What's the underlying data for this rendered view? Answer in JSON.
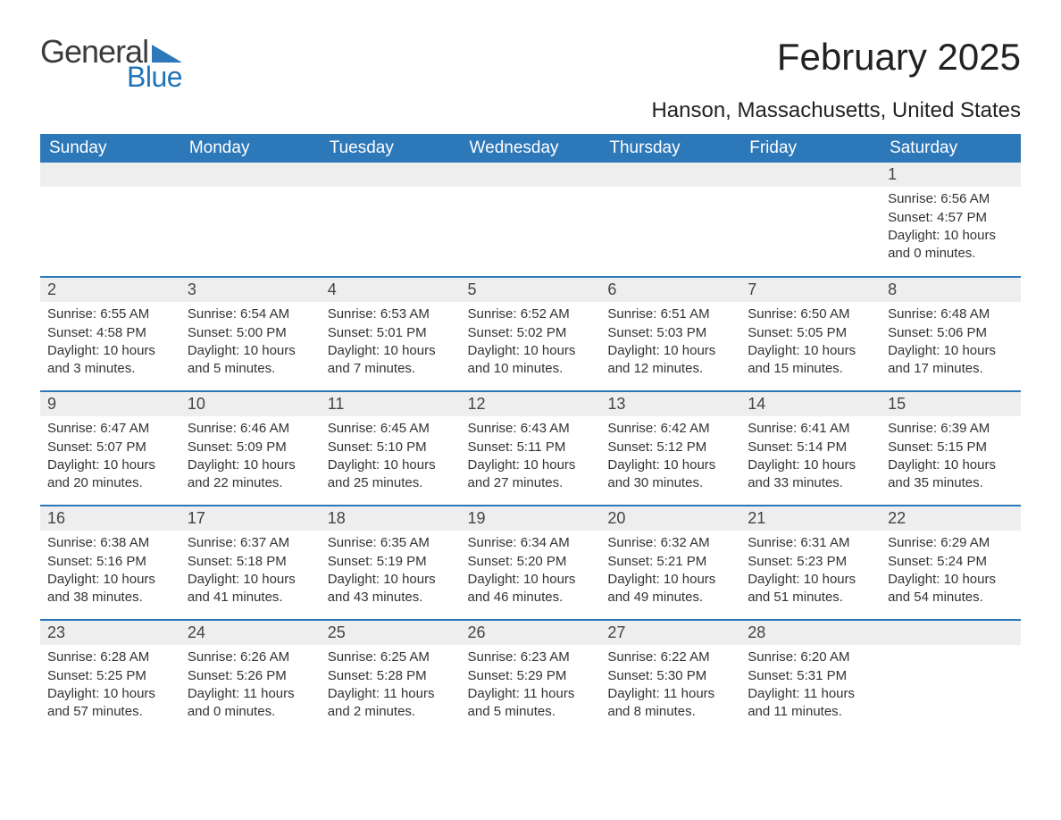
{
  "logo": {
    "text1": "General",
    "text2": "Blue",
    "triangle_color": "#2d78b9"
  },
  "title": "February 2025",
  "location": "Hanson, Massachusetts, United States",
  "colors": {
    "header_bg": "#2d78b9",
    "header_text": "#ffffff",
    "row_divider": "#2d78b9",
    "daynum_bg": "#eeeeee",
    "text": "#333333",
    "background": "#ffffff"
  },
  "weekdays": [
    "Sunday",
    "Monday",
    "Tuesday",
    "Wednesday",
    "Thursday",
    "Friday",
    "Saturday"
  ],
  "weeks": [
    [
      null,
      null,
      null,
      null,
      null,
      null,
      {
        "n": "1",
        "sunrise": "Sunrise: 6:56 AM",
        "sunset": "Sunset: 4:57 PM",
        "daylight": "Daylight: 10 hours and 0 minutes."
      }
    ],
    [
      {
        "n": "2",
        "sunrise": "Sunrise: 6:55 AM",
        "sunset": "Sunset: 4:58 PM",
        "daylight": "Daylight: 10 hours and 3 minutes."
      },
      {
        "n": "3",
        "sunrise": "Sunrise: 6:54 AM",
        "sunset": "Sunset: 5:00 PM",
        "daylight": "Daylight: 10 hours and 5 minutes."
      },
      {
        "n": "4",
        "sunrise": "Sunrise: 6:53 AM",
        "sunset": "Sunset: 5:01 PM",
        "daylight": "Daylight: 10 hours and 7 minutes."
      },
      {
        "n": "5",
        "sunrise": "Sunrise: 6:52 AM",
        "sunset": "Sunset: 5:02 PM",
        "daylight": "Daylight: 10 hours and 10 minutes."
      },
      {
        "n": "6",
        "sunrise": "Sunrise: 6:51 AM",
        "sunset": "Sunset: 5:03 PM",
        "daylight": "Daylight: 10 hours and 12 minutes."
      },
      {
        "n": "7",
        "sunrise": "Sunrise: 6:50 AM",
        "sunset": "Sunset: 5:05 PM",
        "daylight": "Daylight: 10 hours and 15 minutes."
      },
      {
        "n": "8",
        "sunrise": "Sunrise: 6:48 AM",
        "sunset": "Sunset: 5:06 PM",
        "daylight": "Daylight: 10 hours and 17 minutes."
      }
    ],
    [
      {
        "n": "9",
        "sunrise": "Sunrise: 6:47 AM",
        "sunset": "Sunset: 5:07 PM",
        "daylight": "Daylight: 10 hours and 20 minutes."
      },
      {
        "n": "10",
        "sunrise": "Sunrise: 6:46 AM",
        "sunset": "Sunset: 5:09 PM",
        "daylight": "Daylight: 10 hours and 22 minutes."
      },
      {
        "n": "11",
        "sunrise": "Sunrise: 6:45 AM",
        "sunset": "Sunset: 5:10 PM",
        "daylight": "Daylight: 10 hours and 25 minutes."
      },
      {
        "n": "12",
        "sunrise": "Sunrise: 6:43 AM",
        "sunset": "Sunset: 5:11 PM",
        "daylight": "Daylight: 10 hours and 27 minutes."
      },
      {
        "n": "13",
        "sunrise": "Sunrise: 6:42 AM",
        "sunset": "Sunset: 5:12 PM",
        "daylight": "Daylight: 10 hours and 30 minutes."
      },
      {
        "n": "14",
        "sunrise": "Sunrise: 6:41 AM",
        "sunset": "Sunset: 5:14 PM",
        "daylight": "Daylight: 10 hours and 33 minutes."
      },
      {
        "n": "15",
        "sunrise": "Sunrise: 6:39 AM",
        "sunset": "Sunset: 5:15 PM",
        "daylight": "Daylight: 10 hours and 35 minutes."
      }
    ],
    [
      {
        "n": "16",
        "sunrise": "Sunrise: 6:38 AM",
        "sunset": "Sunset: 5:16 PM",
        "daylight": "Daylight: 10 hours and 38 minutes."
      },
      {
        "n": "17",
        "sunrise": "Sunrise: 6:37 AM",
        "sunset": "Sunset: 5:18 PM",
        "daylight": "Daylight: 10 hours and 41 minutes."
      },
      {
        "n": "18",
        "sunrise": "Sunrise: 6:35 AM",
        "sunset": "Sunset: 5:19 PM",
        "daylight": "Daylight: 10 hours and 43 minutes."
      },
      {
        "n": "19",
        "sunrise": "Sunrise: 6:34 AM",
        "sunset": "Sunset: 5:20 PM",
        "daylight": "Daylight: 10 hours and 46 minutes."
      },
      {
        "n": "20",
        "sunrise": "Sunrise: 6:32 AM",
        "sunset": "Sunset: 5:21 PM",
        "daylight": "Daylight: 10 hours and 49 minutes."
      },
      {
        "n": "21",
        "sunrise": "Sunrise: 6:31 AM",
        "sunset": "Sunset: 5:23 PM",
        "daylight": "Daylight: 10 hours and 51 minutes."
      },
      {
        "n": "22",
        "sunrise": "Sunrise: 6:29 AM",
        "sunset": "Sunset: 5:24 PM",
        "daylight": "Daylight: 10 hours and 54 minutes."
      }
    ],
    [
      {
        "n": "23",
        "sunrise": "Sunrise: 6:28 AM",
        "sunset": "Sunset: 5:25 PM",
        "daylight": "Daylight: 10 hours and 57 minutes."
      },
      {
        "n": "24",
        "sunrise": "Sunrise: 6:26 AM",
        "sunset": "Sunset: 5:26 PM",
        "daylight": "Daylight: 11 hours and 0 minutes."
      },
      {
        "n": "25",
        "sunrise": "Sunrise: 6:25 AM",
        "sunset": "Sunset: 5:28 PM",
        "daylight": "Daylight: 11 hours and 2 minutes."
      },
      {
        "n": "26",
        "sunrise": "Sunrise: 6:23 AM",
        "sunset": "Sunset: 5:29 PM",
        "daylight": "Daylight: 11 hours and 5 minutes."
      },
      {
        "n": "27",
        "sunrise": "Sunrise: 6:22 AM",
        "sunset": "Sunset: 5:30 PM",
        "daylight": "Daylight: 11 hours and 8 minutes."
      },
      {
        "n": "28",
        "sunrise": "Sunrise: 6:20 AM",
        "sunset": "Sunset: 5:31 PM",
        "daylight": "Daylight: 11 hours and 11 minutes."
      },
      null
    ]
  ]
}
